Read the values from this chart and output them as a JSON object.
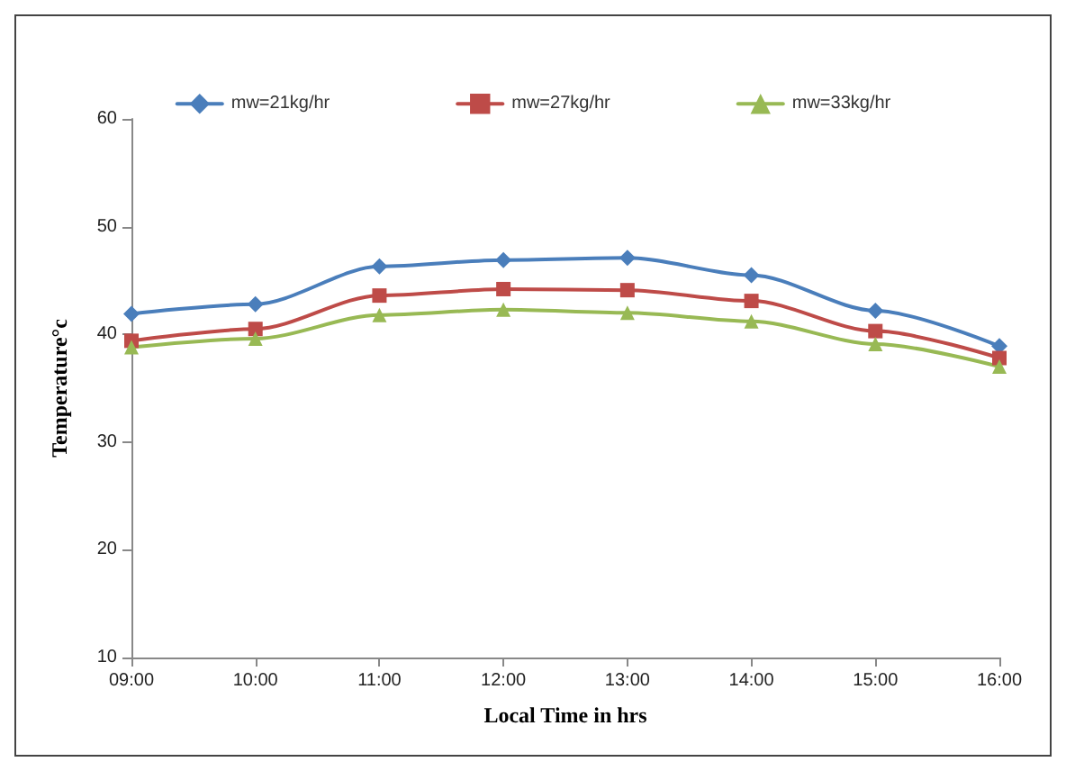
{
  "chart_data": {
    "type": "line",
    "xlabel": "Local Time in hrs",
    "ylabel": "Temperature°c",
    "categories": [
      "09:00",
      "10:00",
      "11:00",
      "12:00",
      "13:00",
      "14:00",
      "15:00",
      "16:00"
    ],
    "series": [
      {
        "name": "mw=21kg/hr",
        "color": "#4a7ebb",
        "marker": "diamond",
        "values": [
          41.9,
          42.8,
          46.3,
          46.9,
          47.1,
          45.5,
          42.2,
          38.9
        ]
      },
      {
        "name": "mw=27kg/hr",
        "color": "#be4b48",
        "marker": "square",
        "values": [
          39.4,
          40.5,
          43.6,
          44.2,
          44.1,
          43.1,
          40.3,
          37.8
        ]
      },
      {
        "name": "mw=33kg/hr",
        "color": "#98b954",
        "marker": "triangle",
        "values": [
          38.8,
          39.6,
          41.8,
          42.3,
          42.0,
          41.2,
          39.1,
          37.0
        ]
      }
    ],
    "ylim": [
      10,
      60
    ],
    "yticks": [
      10,
      20,
      30,
      40,
      50,
      60
    ],
    "grid": false,
    "legend": "top"
  }
}
